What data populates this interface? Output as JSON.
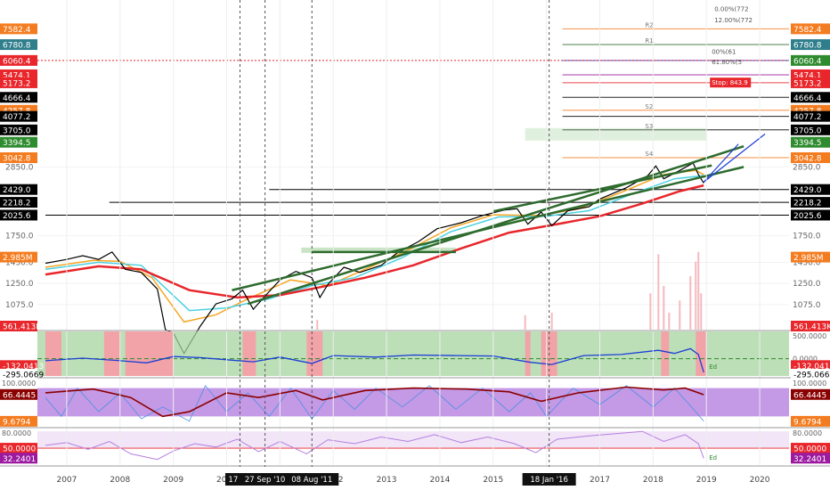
{
  "chart_data": {
    "type": "line",
    "price_axis": {
      "scale": "log",
      "range": [
        900,
        9300
      ],
      "ticks": [
        1075.0,
        1250.0,
        1450.0,
        1750.0,
        2850.0
      ]
    },
    "price_axis_labels": [
      "1075.0",
      "1250.0",
      "1450.0",
      "1750.0",
      "2850.0"
    ],
    "x_axis": {
      "range": [
        2006.45,
        2020.55
      ],
      "ticks": [
        2007,
        2008,
        2009,
        2010,
        2011,
        2012,
        2013,
        2014,
        2015,
        2016,
        2017,
        2018,
        2019,
        2020
      ]
    },
    "x_labels": [
      "2007",
      "2008",
      "2009",
      "2010",
      "2011",
      "2012",
      "2013",
      "2014",
      "2015",
      "2016",
      "2017",
      "2018",
      "2019",
      "2020"
    ],
    "series": [
      {
        "name": "price",
        "color": "#000000",
        "points": [
          [
            2006.6,
            1440
          ],
          [
            2007.0,
            1480
          ],
          [
            2007.3,
            1520
          ],
          [
            2007.6,
            1480
          ],
          [
            2007.85,
            1560
          ],
          [
            2008.1,
            1380
          ],
          [
            2008.4,
            1350
          ],
          [
            2008.7,
            1200
          ],
          [
            2008.85,
            900
          ],
          [
            2009.0,
            880
          ],
          [
            2009.2,
            760
          ],
          [
            2009.5,
            920
          ],
          [
            2009.8,
            1080
          ],
          [
            2010.1,
            1120
          ],
          [
            2010.3,
            1190
          ],
          [
            2010.5,
            1040
          ],
          [
            2010.8,
            1180
          ],
          [
            2011.0,
            1280
          ],
          [
            2011.3,
            1360
          ],
          [
            2011.6,
            1300
          ],
          [
            2011.75,
            1130
          ],
          [
            2011.9,
            1240
          ],
          [
            2012.2,
            1400
          ],
          [
            2012.5,
            1350
          ],
          [
            2012.9,
            1420
          ],
          [
            2013.2,
            1550
          ],
          [
            2013.6,
            1680
          ],
          [
            2013.95,
            1840
          ],
          [
            2014.4,
            1920
          ],
          [
            2014.8,
            2020
          ],
          [
            2015.2,
            2100
          ],
          [
            2015.45,
            2120
          ],
          [
            2015.65,
            1900
          ],
          [
            2015.9,
            2070
          ],
          [
            2016.1,
            1880
          ],
          [
            2016.4,
            2090
          ],
          [
            2016.8,
            2150
          ],
          [
            2017.0,
            2270
          ],
          [
            2017.5,
            2460
          ],
          [
            2017.9,
            2680
          ],
          [
            2018.05,
            2870
          ],
          [
            2018.2,
            2620
          ],
          [
            2018.5,
            2780
          ],
          [
            2018.75,
            2930
          ],
          [
            2018.85,
            2700
          ],
          [
            2018.95,
            2540
          ]
        ]
      },
      {
        "name": "MA fast",
        "color": "#f5a623",
        "points": [
          [
            2006.6,
            1400
          ],
          [
            2007.5,
            1470
          ],
          [
            2008.0,
            1460
          ],
          [
            2008.6,
            1300
          ],
          [
            2009.2,
            950
          ],
          [
            2009.8,
            1000
          ],
          [
            2010.4,
            1120
          ],
          [
            2011.2,
            1280
          ],
          [
            2011.9,
            1230
          ],
          [
            2012.6,
            1380
          ],
          [
            2013.4,
            1580
          ],
          [
            2014.2,
            1850
          ],
          [
            2015.0,
            2030
          ],
          [
            2015.9,
            2020
          ],
          [
            2016.6,
            2120
          ],
          [
            2017.4,
            2380
          ],
          [
            2018.2,
            2700
          ],
          [
            2018.8,
            2780
          ],
          [
            2018.95,
            2700
          ]
        ]
      },
      {
        "name": "MA mid",
        "color": "#4dd0e1",
        "points": [
          [
            2006.6,
            1380
          ],
          [
            2007.6,
            1450
          ],
          [
            2008.4,
            1420
          ],
          [
            2009.3,
            1030
          ],
          [
            2010.0,
            1050
          ],
          [
            2010.8,
            1120
          ],
          [
            2011.6,
            1230
          ],
          [
            2012.4,
            1300
          ],
          [
            2013.3,
            1500
          ],
          [
            2014.2,
            1800
          ],
          [
            2015.1,
            2000
          ],
          [
            2016.0,
            2010
          ],
          [
            2016.8,
            2090
          ],
          [
            2017.6,
            2350
          ],
          [
            2018.4,
            2620
          ],
          [
            2018.95,
            2680
          ]
        ]
      },
      {
        "name": "MA slow",
        "color": "#e8262b",
        "points": [
          [
            2006.6,
            1330
          ],
          [
            2007.6,
            1410
          ],
          [
            2008.4,
            1380
          ],
          [
            2009.3,
            1190
          ],
          [
            2010.2,
            1130
          ],
          [
            2011.0,
            1150
          ],
          [
            2011.8,
            1220
          ],
          [
            2012.6,
            1300
          ],
          [
            2013.5,
            1420
          ],
          [
            2014.4,
            1600
          ],
          [
            2015.3,
            1790
          ],
          [
            2016.2,
            1900
          ],
          [
            2017.0,
            2010
          ],
          [
            2017.8,
            2200
          ],
          [
            2018.5,
            2400
          ],
          [
            2018.95,
            2500
          ]
        ]
      }
    ],
    "trendlines": [
      {
        "color": "#2e6b2e",
        "from": [
          2010.1,
          1190
        ],
        "to": [
          2019.7,
          2850
        ]
      },
      {
        "color": "#2e6b2e",
        "from": [
          2010.4,
          1080
        ],
        "to": [
          2019.7,
          3300
        ]
      },
      {
        "color": "#2e6b2e",
        "from": [
          2015.0,
          2080
        ],
        "to": [
          2019.1,
          2880
        ]
      },
      {
        "color": "#2e6b2e",
        "from": [
          2011.6,
          1560
        ],
        "to": [
          2014.3,
          1560
        ]
      }
    ],
    "levels": [
      {
        "value": 2429.0,
        "label": "2429.0",
        "color": "#000000",
        "from": 2010.8
      },
      {
        "value": 2218.2,
        "label": "2218.2",
        "color": "#000000",
        "from": 2007.8
      },
      {
        "value": 2025.6,
        "label": "2025.6",
        "color": "#000000",
        "from": 2006.6
      }
    ],
    "left_badges": [
      {
        "label": "7582.4",
        "value": 7582.4,
        "color": "#f47c20"
      },
      {
        "label": "6780.8",
        "value": 6780.8,
        "color": "#2f7e8c"
      },
      {
        "label": "6060.4",
        "value": 6060.4,
        "color": "#e8262b"
      },
      {
        "label": "5474.1",
        "value": 5474.1,
        "color": "#e8262b"
      },
      {
        "label": "5173.2",
        "value": 5173.2,
        "color": "#e8262b"
      },
      {
        "label": "4666.4",
        "value": 4666.4,
        "color": "#000000"
      },
      {
        "label": "4257.8",
        "value": 4257.8,
        "color": "#f47c20"
      },
      {
        "label": "4077.2",
        "value": 4077.2,
        "color": "#000000"
      },
      {
        "label": "3705.0",
        "value": 3705.0,
        "color": "#000000"
      },
      {
        "label": "3394.5",
        "value": 3394.5,
        "color": "#2e8b2e"
      },
      {
        "label": "3042.8",
        "value": 3042.8,
        "color": "#f47c20"
      },
      {
        "label": "2429.0",
        "value": 2429.0,
        "color": "#000000"
      },
      {
        "label": "2218.2",
        "value": 2218.2,
        "color": "#000000"
      },
      {
        "label": "2025.6",
        "value": 2025.6,
        "color": "#000000"
      }
    ],
    "right_badges": [
      {
        "label": "7582.4",
        "value": 7582.4,
        "color": "#f47c20"
      },
      {
        "label": "6780.8",
        "value": 6780.8,
        "color": "#2f7e8c"
      },
      {
        "label": "6060.4",
        "value": 6060.4,
        "color": "#2e8b2e"
      },
      {
        "label": "5474.1",
        "value": 5474.1,
        "color": "#e8262b"
      },
      {
        "label": "5173.2",
        "value": 5173.2,
        "color": "#e8262b"
      },
      {
        "label": "4666.4",
        "value": 4666.4,
        "color": "#000000"
      },
      {
        "label": "4257.8",
        "value": 4257.8,
        "color": "#f47c20"
      },
      {
        "label": "4077.2",
        "value": 4077.2,
        "color": "#000000"
      },
      {
        "label": "3705.0",
        "value": 3705.0,
        "color": "#000000"
      },
      {
        "label": "3394.5",
        "value": 3394.5,
        "color": "#2e8b2e"
      },
      {
        "label": "3042.8",
        "value": 3042.8,
        "color": "#f47c20"
      },
      {
        "label": "2429.0",
        "value": 2429.0,
        "color": "#000000"
      },
      {
        "label": "2218.2",
        "value": 2218.2,
        "color": "#000000"
      },
      {
        "label": "2025.6",
        "value": 2025.6,
        "color": "#000000"
      }
    ],
    "fib_labels": [
      "0.00%(772",
      "12.00%(772",
      "00%(61",
      "61.80%(5",
      "Stop: 843.9"
    ],
    "pivot_labels": [
      "R2",
      "R1",
      "S2",
      "S3",
      "S4"
    ],
    "volume_badge": {
      "label": "2.985M",
      "value": 2985000,
      "color": "#f47c20"
    },
    "volume_axis": {
      "range": [
        0,
        3300000
      ]
    },
    "volume_bars": [
      [
        2017.95,
        1500000
      ],
      [
        2018.1,
        3100000
      ],
      [
        2018.2,
        1800000
      ],
      [
        2018.3,
        700000
      ],
      [
        2018.5,
        1200000
      ],
      [
        2018.7,
        2200000
      ],
      [
        2018.8,
        2800000
      ],
      [
        2018.85,
        3200000
      ],
      [
        2018.9,
        1500000
      ],
      [
        2015.6,
        600000
      ],
      [
        2016.1,
        700000
      ],
      [
        2011.7,
        400000
      ]
    ],
    "indicator_1": {
      "badge_top": {
        "label": "-132.0413",
        "value": -132.0413,
        "color": "#e8262b"
      },
      "badge_bottom": {
        "label": "-295.0669",
        "value": -295.0669,
        "color": "#ffffff"
      },
      "badge_mid": {
        "label": "561.413K",
        "value": 561413,
        "color": "#e8262b"
      },
      "right_top": "500.0000",
      "right_mid": "0.0000",
      "range": [
        -330,
        520
      ],
      "line": [
        [
          2006.6,
          -40
        ],
        [
          2007.3,
          10
        ],
        [
          2007.9,
          -30
        ],
        [
          2008.5,
          -80
        ],
        [
          2009.0,
          40
        ],
        [
          2009.5,
          20
        ],
        [
          2010.0,
          -20
        ],
        [
          2010.5,
          -60
        ],
        [
          2011.0,
          30
        ],
        [
          2011.6,
          -90
        ],
        [
          2012.0,
          60
        ],
        [
          2012.8,
          30
        ],
        [
          2013.5,
          70
        ],
        [
          2014.3,
          60
        ],
        [
          2015.0,
          50
        ],
        [
          2015.7,
          -70
        ],
        [
          2016.1,
          -110
        ],
        [
          2016.7,
          60
        ],
        [
          2017.4,
          80
        ],
        [
          2018.1,
          160
        ],
        [
          2018.4,
          100
        ],
        [
          2018.7,
          190
        ],
        [
          2018.85,
          80
        ],
        [
          2018.95,
          -260
        ]
      ],
      "red_zones": [
        [
          2006.6,
          2006.9
        ],
        [
          2007.7,
          2008.0
        ],
        [
          2008.1,
          2009.0
        ],
        [
          2010.3,
          2010.55
        ],
        [
          2011.5,
          2011.8
        ],
        [
          2015.6,
          2015.7
        ],
        [
          2015.9,
          2016.2
        ],
        [
          2018.15,
          2018.3
        ],
        [
          2018.8,
          2019.0
        ]
      ],
      "note": "Ed"
    },
    "indicator_2": {
      "badge_top": {
        "label": "66.4445",
        "value": 66.4445,
        "color": "#8b0000"
      },
      "badge_bottom": {
        "label": "9.6794",
        "value": 9.6794,
        "color": "#f47c20"
      },
      "right_top": "100.0000",
      "range": [
        0,
        100
      ],
      "slow": [
        [
          2006.6,
          70
        ],
        [
          2007.5,
          78
        ],
        [
          2008.2,
          60
        ],
        [
          2008.8,
          20
        ],
        [
          2009.3,
          30
        ],
        [
          2010.0,
          70
        ],
        [
          2010.6,
          60
        ],
        [
          2011.3,
          75
        ],
        [
          2011.8,
          55
        ],
        [
          2012.6,
          75
        ],
        [
          2013.5,
          80
        ],
        [
          2014.5,
          78
        ],
        [
          2015.3,
          72
        ],
        [
          2015.9,
          52
        ],
        [
          2016.6,
          70
        ],
        [
          2017.5,
          82
        ],
        [
          2018.2,
          76
        ],
        [
          2018.6,
          80
        ],
        [
          2018.95,
          66
        ]
      ],
      "fast": [
        [
          2006.6,
          60
        ],
        [
          2006.9,
          20
        ],
        [
          2007.2,
          80
        ],
        [
          2007.6,
          30
        ],
        [
          2008.0,
          70
        ],
        [
          2008.4,
          15
        ],
        [
          2008.8,
          40
        ],
        [
          2009.3,
          10
        ],
        [
          2009.6,
          85
        ],
        [
          2010.0,
          30
        ],
        [
          2010.4,
          70
        ],
        [
          2010.8,
          20
        ],
        [
          2011.2,
          80
        ],
        [
          2011.6,
          15
        ],
        [
          2012.0,
          75
        ],
        [
          2012.4,
          35
        ],
        [
          2012.8,
          80
        ],
        [
          2013.3,
          40
        ],
        [
          2013.8,
          85
        ],
        [
          2014.3,
          35
        ],
        [
          2014.8,
          80
        ],
        [
          2015.3,
          30
        ],
        [
          2015.7,
          70
        ],
        [
          2016.0,
          20
        ],
        [
          2016.5,
          80
        ],
        [
          2017.0,
          45
        ],
        [
          2017.5,
          85
        ],
        [
          2018.0,
          40
        ],
        [
          2018.4,
          80
        ],
        [
          2018.8,
          30
        ],
        [
          2018.95,
          10
        ]
      ],
      "band": [
        20,
        80
      ]
    },
    "indicator_3": {
      "badge_top": {
        "label": "50.0000",
        "value": 50,
        "color": "#e8262b"
      },
      "badge_bottom": {
        "label": "32.2401",
        "value": 32.2401,
        "color": "#9b1aa0"
      },
      "right_top": "80.0000",
      "range": [
        20,
        85
      ],
      "line": [
        [
          2006.6,
          55
        ],
        [
          2007.0,
          60
        ],
        [
          2007.4,
          48
        ],
        [
          2007.8,
          62
        ],
        [
          2008.2,
          40
        ],
        [
          2008.7,
          30
        ],
        [
          2009.0,
          45
        ],
        [
          2009.4,
          58
        ],
        [
          2009.8,
          52
        ],
        [
          2010.2,
          66
        ],
        [
          2010.6,
          44
        ],
        [
          2011.0,
          62
        ],
        [
          2011.5,
          40
        ],
        [
          2011.9,
          65
        ],
        [
          2012.4,
          58
        ],
        [
          2012.9,
          70
        ],
        [
          2013.4,
          62
        ],
        [
          2013.9,
          74
        ],
        [
          2014.4,
          60
        ],
        [
          2014.9,
          70
        ],
        [
          2015.4,
          58
        ],
        [
          2015.8,
          42
        ],
        [
          2016.2,
          66
        ],
        [
          2016.8,
          72
        ],
        [
          2017.3,
          76
        ],
        [
          2017.8,
          80
        ],
        [
          2018.2,
          62
        ],
        [
          2018.6,
          74
        ],
        [
          2018.85,
          58
        ],
        [
          2018.95,
          32
        ]
      ],
      "band": [
        50,
        80
      ],
      "note": "Ed"
    },
    "vertical_lines": [
      {
        "x": 2010.25,
        "label": "17 Ma"
      },
      {
        "x": 2010.72,
        "label": "27 Sep '10"
      },
      {
        "x": 2011.6,
        "label": "08 Aug '11"
      },
      {
        "x": 2016.05,
        "label": "18 Jan '16"
      }
    ],
    "colors": {
      "accent_blue": "#1a3dd6",
      "accent_green": "#2e6b2e",
      "zone_green": "#a6d4a0",
      "zone_red": "#f2a3a8",
      "zone_purple": "#b57fe0"
    }
  }
}
